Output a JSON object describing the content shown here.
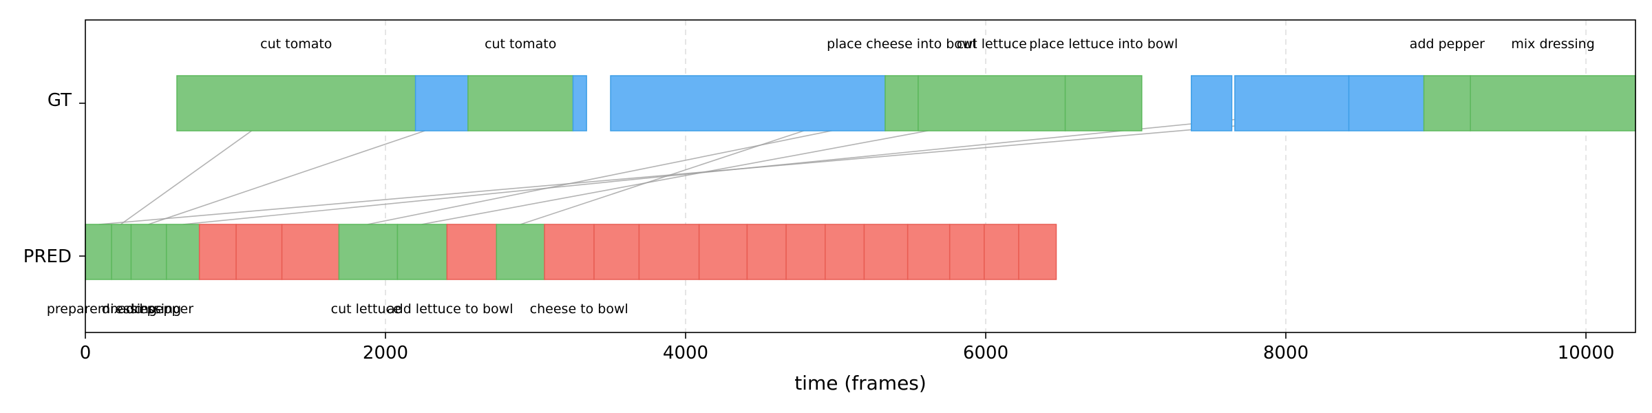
{
  "chart_data": {
    "type": "timeline",
    "xlabel": "time (frames)",
    "xlim": [
      0,
      10330
    ],
    "xticks": [
      0,
      2000,
      4000,
      6000,
      8000,
      10000
    ],
    "rows": [
      "GT",
      "PRED"
    ],
    "colors": {
      "green": "#7fc77f",
      "green_edge": "#5cb85c",
      "blue": "#66b3f5",
      "blue_edge": "#3d9ee6",
      "red": "#f58078",
      "red_edge": "#e85c52",
      "link": "#999999",
      "grid": "#dddddd"
    },
    "gt_segments": [
      {
        "start": 610,
        "end": 2200,
        "color": "green",
        "label": "cut tomato"
      },
      {
        "start": 2200,
        "end": 2550,
        "color": "blue",
        "label": ""
      },
      {
        "start": 2550,
        "end": 3250,
        "color": "green",
        "label": "cut tomato"
      },
      {
        "start": 3250,
        "end": 3340,
        "color": "blue",
        "label": ""
      },
      {
        "start": 3500,
        "end": 5330,
        "color": "blue",
        "label": ""
      },
      {
        "start": 5330,
        "end": 5550,
        "color": "green",
        "label": "place cheese into bowl"
      },
      {
        "start": 5550,
        "end": 6530,
        "color": "green",
        "label": "cut lettuce"
      },
      {
        "start": 6530,
        "end": 7040,
        "color": "green",
        "label": "place lettuce into bowl"
      },
      {
        "start": 7370,
        "end": 7640,
        "color": "blue",
        "label": ""
      },
      {
        "start": 7660,
        "end": 8420,
        "color": "blue",
        "label": ""
      },
      {
        "start": 8420,
        "end": 8920,
        "color": "blue",
        "label": ""
      },
      {
        "start": 8920,
        "end": 9230,
        "color": "green",
        "label": "add pepper"
      },
      {
        "start": 9230,
        "end": 10330,
        "color": "green",
        "label": "mix dressing"
      }
    ],
    "pred_segments": [
      {
        "start": 0,
        "end": 175,
        "color": "green"
      },
      {
        "start": 175,
        "end": 305,
        "color": "green"
      },
      {
        "start": 305,
        "end": 540,
        "color": "green"
      },
      {
        "start": 540,
        "end": 760,
        "color": "green"
      },
      {
        "start": 760,
        "end": 1005,
        "color": "red"
      },
      {
        "start": 1005,
        "end": 1310,
        "color": "red"
      },
      {
        "start": 1310,
        "end": 1690,
        "color": "red"
      },
      {
        "start": 1690,
        "end": 2080,
        "color": "green"
      },
      {
        "start": 2080,
        "end": 2410,
        "color": "green"
      },
      {
        "start": 2410,
        "end": 2740,
        "color": "red"
      },
      {
        "start": 2740,
        "end": 3060,
        "color": "green"
      },
      {
        "start": 3060,
        "end": 3390,
        "color": "red"
      },
      {
        "start": 3390,
        "end": 3690,
        "color": "red"
      },
      {
        "start": 3690,
        "end": 4090,
        "color": "red"
      },
      {
        "start": 4090,
        "end": 4410,
        "color": "red"
      },
      {
        "start": 4410,
        "end": 4670,
        "color": "red"
      },
      {
        "start": 4670,
        "end": 4930,
        "color": "red"
      },
      {
        "start": 4930,
        "end": 5190,
        "color": "red"
      },
      {
        "start": 5190,
        "end": 5480,
        "color": "red"
      },
      {
        "start": 5480,
        "end": 5760,
        "color": "red"
      },
      {
        "start": 5760,
        "end": 5990,
        "color": "red"
      },
      {
        "start": 5990,
        "end": 6220,
        "color": "red"
      },
      {
        "start": 6220,
        "end": 6470,
        "color": "red"
      }
    ],
    "pred_labels": [
      {
        "x": 110,
        "text": "prepare dressing"
      },
      {
        "x": 470,
        "text": "add pepper"
      },
      {
        "x": 360,
        "text": "mix dressing"
      },
      {
        "x": 1870,
        "text": "cut lettuce"
      },
      {
        "x": 2430,
        "text": "add lettuce to bowl"
      },
      {
        "x": 3290,
        "text": "cheese to bowl"
      }
    ],
    "links": [
      {
        "gt_x": 1410,
        "pred_x": 235
      },
      {
        "gt_x": 2900,
        "pred_x": 420
      },
      {
        "gt_x": 5440,
        "pred_x": 2900
      },
      {
        "gt_x": 6040,
        "pred_x": 1880
      },
      {
        "gt_x": 6780,
        "pred_x": 2240
      },
      {
        "gt_x": 9070,
        "pred_x": 650
      },
      {
        "gt_x": 9780,
        "pred_x": 90
      }
    ]
  }
}
